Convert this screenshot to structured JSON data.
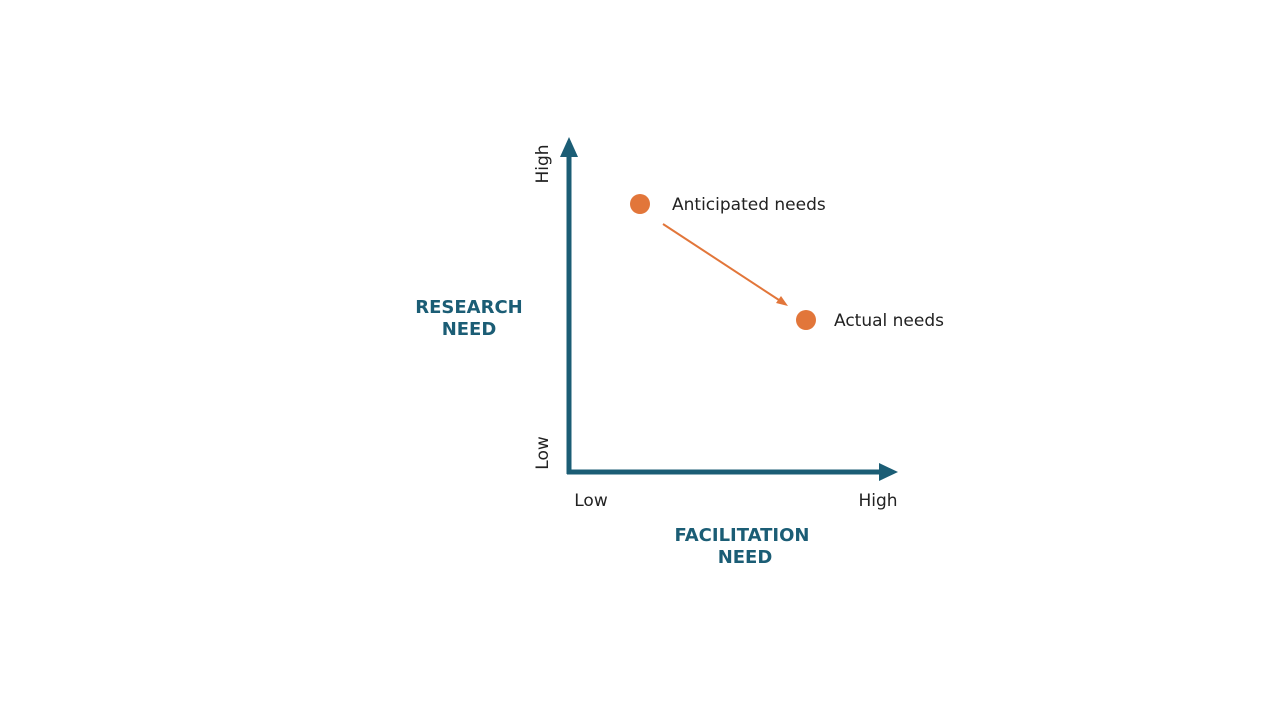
{
  "y_axis": {
    "title_lines": [
      "RESEARCH",
      "NEED"
    ],
    "high": "High",
    "low": "Low"
  },
  "x_axis": {
    "title_lines": [
      "FACILITATION",
      "NEED"
    ],
    "low": "Low",
    "high": "High"
  },
  "points": [
    {
      "label": "Anticipated needs"
    },
    {
      "label": "Actual needs"
    }
  ]
}
